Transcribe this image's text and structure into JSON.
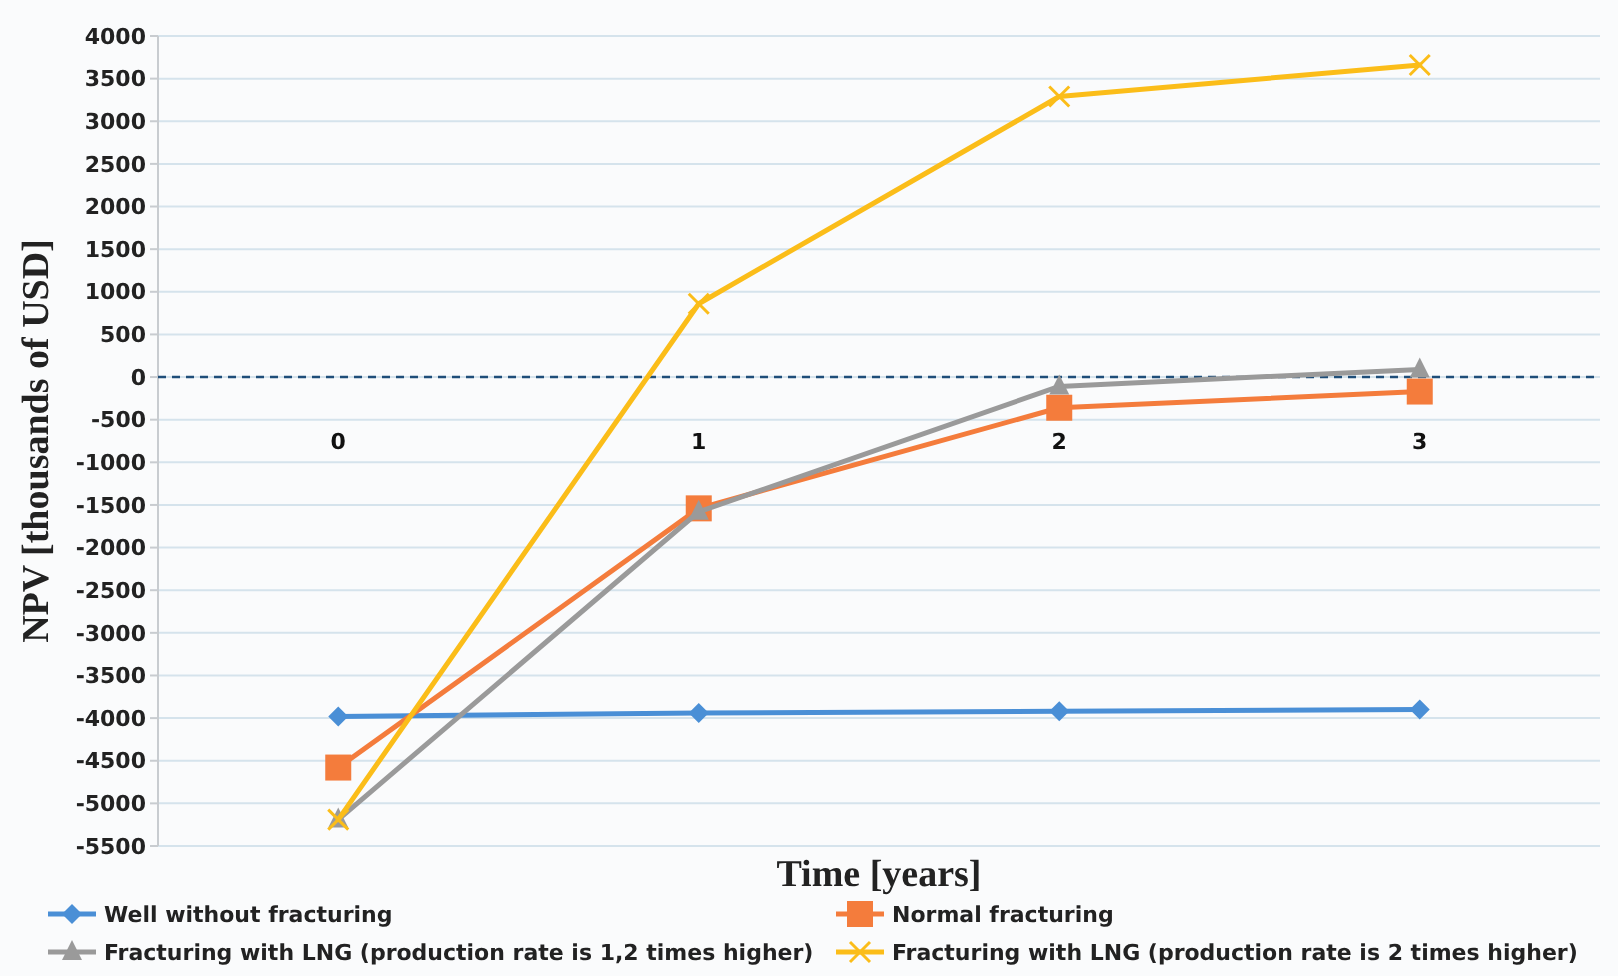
{
  "chart_data": {
    "type": "line",
    "xlabel": "Time [years]",
    "ylabel": "NPV [thousands of USD]",
    "categories": [
      "0",
      "1",
      "2",
      "3"
    ],
    "ylim": [
      -5500,
      4000
    ],
    "yticks": [
      -5500,
      -5000,
      -4500,
      -4000,
      -3500,
      -3000,
      -2500,
      -2000,
      -1500,
      -1000,
      -500,
      0,
      500,
      1000,
      1500,
      2000,
      2500,
      3000,
      3500,
      4000
    ],
    "grid": "y",
    "legend": "bottom",
    "ref_lines": [
      {
        "axis": "y",
        "value": 0,
        "color": "#1f4e79",
        "line_style": "dashed"
      }
    ],
    "series": [
      {
        "name": "Well without fracturing",
        "color": "#4a8fd6",
        "marker": "diamond",
        "values": [
          -3980,
          -3940,
          -3920,
          -3900
        ]
      },
      {
        "name": "Normal fracturing",
        "color": "#f47c3c",
        "marker": "square",
        "values": [
          -4580,
          -1540,
          -360,
          -170
        ]
      },
      {
        "name": "Fracturing with LNG (production rate is 1,2 times higher)",
        "color": "#9a9a9a",
        "marker": "triangle",
        "values": [
          -5190,
          -1580,
          -110,
          90
        ]
      },
      {
        "name": "Fracturing with LNG (production rate is 2 times higher)",
        "color": "#fbbd19",
        "marker": "cross",
        "values": [
          -5190,
          860,
          3290,
          3660
        ]
      }
    ]
  }
}
